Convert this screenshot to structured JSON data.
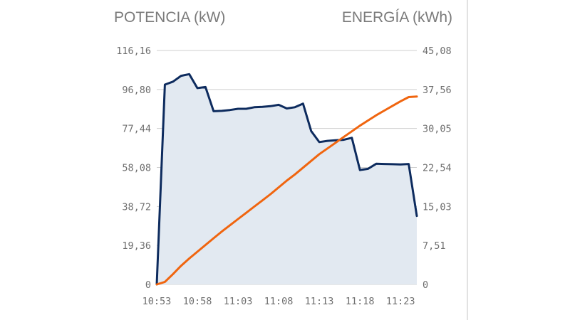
{
  "chart_data": {
    "type": "line",
    "left_axis_title": "POTENCIA (kW)",
    "right_axis_title": "ENERGÍA (kWh)",
    "x_ticks": [
      "10:53",
      "10:58",
      "11:03",
      "11:08",
      "11:13",
      "11:18",
      "11:23"
    ],
    "y_left_ticks": [
      "0",
      "19,36",
      "38,72",
      "58,08",
      "77,44",
      "96,80",
      "116,16"
    ],
    "y_right_ticks": [
      "0",
      "7,51",
      "15,03",
      "22,54",
      "30,05",
      "37,56",
      "45,08"
    ],
    "y_left_range": [
      0,
      116.16
    ],
    "y_right_range": [
      0,
      45.08
    ],
    "x_range_minutes": [
      0,
      32
    ],
    "grid": true,
    "series": [
      {
        "axis": "left",
        "style": "area",
        "color": "#0d2b5e",
        "fill": "#e2e9f1",
        "x": [
          0,
          1,
          2,
          3,
          4,
          5,
          6,
          7,
          8,
          9,
          10,
          11,
          12,
          13,
          14,
          15,
          16,
          17,
          18,
          19,
          20,
          21,
          22,
          23,
          24,
          25,
          26,
          27,
          28,
          29,
          30,
          31,
          32
        ],
        "values": [
          0,
          99.2,
          100.7,
          103.6,
          104.4,
          97.5,
          98,
          86,
          86.2,
          86.6,
          87.2,
          87.2,
          88,
          88.2,
          88.5,
          89.2,
          87.4,
          88,
          89.8,
          76.2,
          70.7,
          71.3,
          71.6,
          71.8,
          72.8,
          56.8,
          57.4,
          59.9,
          59.8,
          59.7,
          59.6,
          59.8,
          34
        ]
      },
      {
        "axis": "right",
        "style": "line",
        "color": "#f0650f",
        "x": [
          0,
          1,
          2,
          3,
          4,
          5,
          6,
          7,
          8,
          9,
          10,
          11,
          12,
          13,
          14,
          15,
          16,
          17,
          18,
          19,
          20,
          21,
          22,
          23,
          24,
          25,
          26,
          27,
          28,
          29,
          30,
          31,
          32
        ],
        "values": [
          0,
          0.5,
          2,
          3.6,
          5,
          6.3,
          7.6,
          8.9,
          10.2,
          11.4,
          12.6,
          13.8,
          15,
          16.2,
          17.4,
          18.7,
          20,
          21.2,
          22.5,
          23.8,
          25.1,
          26.2,
          27.3,
          28.4,
          29.5,
          30.6,
          31.6,
          32.6,
          33.5,
          34.4,
          35.3,
          36.1,
          36.2
        ]
      }
    ]
  }
}
